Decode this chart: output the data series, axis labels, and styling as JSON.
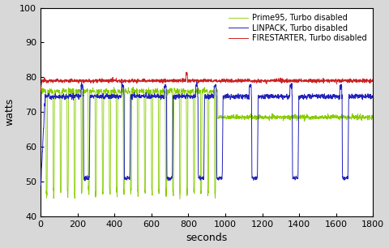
{
  "xlabel": "seconds",
  "ylabel": "watts",
  "xlim": [
    0,
    1800
  ],
  "ylim": [
    40,
    100
  ],
  "yticks": [
    40,
    50,
    60,
    70,
    80,
    90,
    100
  ],
  "xticks": [
    0,
    200,
    400,
    600,
    800,
    1000,
    1200,
    1400,
    1600,
    1800
  ],
  "firestarter_color": "#cc2222",
  "prime95_color": "#88cc00",
  "linpack_color": "#2222bb",
  "legend_labels": [
    "FIRESTARTER, Turbo disabled",
    "Prime95, Turbo disabled",
    "LINPACK, Turbo disabled"
  ],
  "bg_color": "#d8d8d8",
  "plot_bg_color": "#ffffff",
  "firestarter_base": 79.0,
  "prime95_phase1_base": 76.0,
  "prime95_phase2_base": 68.5,
  "prime95_phase_change": 960,
  "prime95_dip_low": 47.0,
  "linpack_base": 74.5,
  "linpack_dip_low": 51.0
}
